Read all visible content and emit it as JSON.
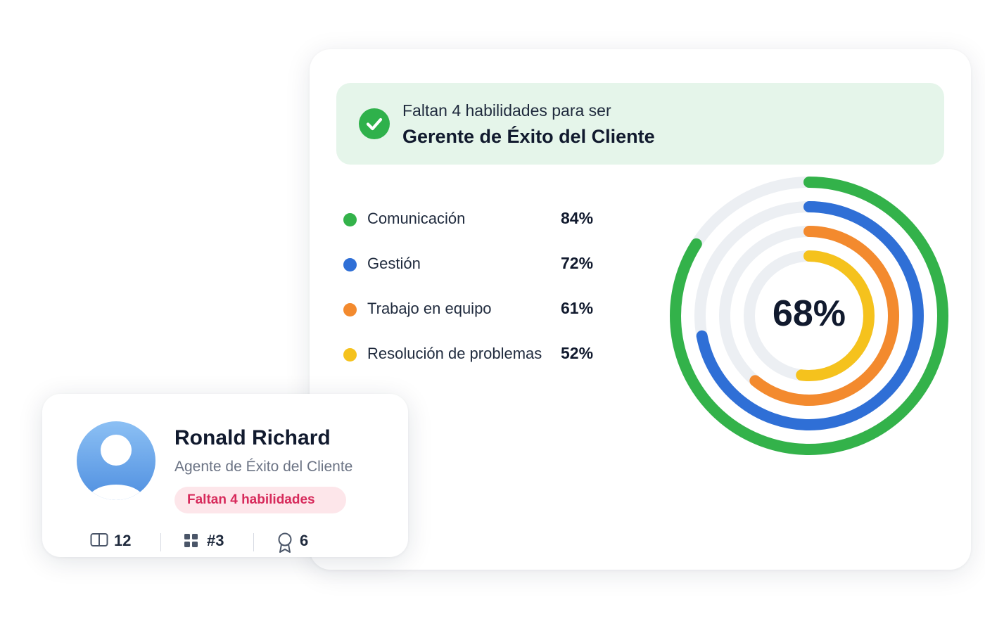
{
  "main_card": {
    "banner": {
      "subtitle": "Faltan 4 habilidades para ser",
      "title": "Gerente de Éxito del Cliente"
    },
    "skills": [
      {
        "label": "Comunicación",
        "value": "84%",
        "percent": 84,
        "color": "#33b24a"
      },
      {
        "label": "Gestión",
        "value": "72%",
        "percent": 72,
        "color": "#2f6fd6"
      },
      {
        "label": "Trabajo en equipo",
        "value": "61%",
        "percent": 61,
        "color": "#f38a2e"
      },
      {
        "label": "Resolución de problemas",
        "value": "52%",
        "percent": 52,
        "color": "#f5c21d"
      }
    ],
    "overall": {
      "value": "68%"
    },
    "track_color": "#eceff3",
    "check_color": "#2fb14b",
    "banner_bg": "#e5f5ea"
  },
  "profile": {
    "name": "Ronald Richard",
    "role": "Agente de Éxito del Cliente",
    "badge": "Faltan 4 habilidades",
    "stats": [
      {
        "icon": "book-icon",
        "value": "12"
      },
      {
        "icon": "grid-icon",
        "value": "#3"
      },
      {
        "icon": "award-icon",
        "value": "6"
      }
    ]
  }
}
